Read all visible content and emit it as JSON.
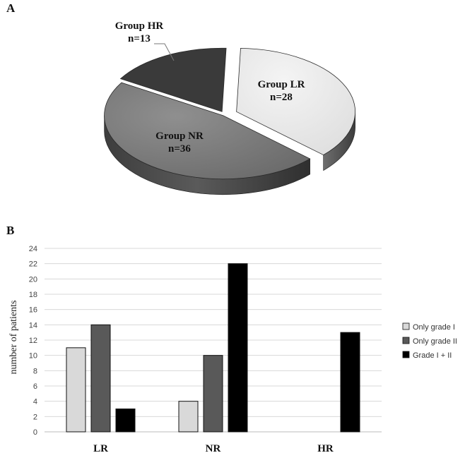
{
  "panels": {
    "a": "A",
    "b": "B"
  },
  "chart_data": [
    {
      "type": "pie",
      "style": "3d-exploded",
      "slices": [
        {
          "name": "Group LR",
          "label": "n=28",
          "value": 28,
          "color": "#e6e6e6"
        },
        {
          "name": "Group NR",
          "label": "n=36",
          "value": 36,
          "color": "#7a7a7a"
        },
        {
          "name": "Group HR",
          "label": "n=13",
          "value": 13,
          "color": "#3a3a3a"
        }
      ]
    },
    {
      "type": "bar",
      "categories": [
        "LR",
        "NR",
        "HR"
      ],
      "ylabel": "number of patients",
      "ylim": [
        0,
        24
      ],
      "yticks": [
        0,
        2,
        4,
        6,
        8,
        10,
        12,
        14,
        16,
        18,
        20,
        22,
        24
      ],
      "grid": true,
      "legend_position": "right",
      "series": [
        {
          "name": "Only grade I",
          "values": [
            11,
            4,
            0
          ],
          "color": "#d9d9d9"
        },
        {
          "name": "Only grade II",
          "values": [
            14,
            10,
            0
          ],
          "color": "#595959"
        },
        {
          "name": "Grade I + II",
          "values": [
            3,
            22,
            13
          ],
          "color": "#000000"
        }
      ]
    }
  ]
}
